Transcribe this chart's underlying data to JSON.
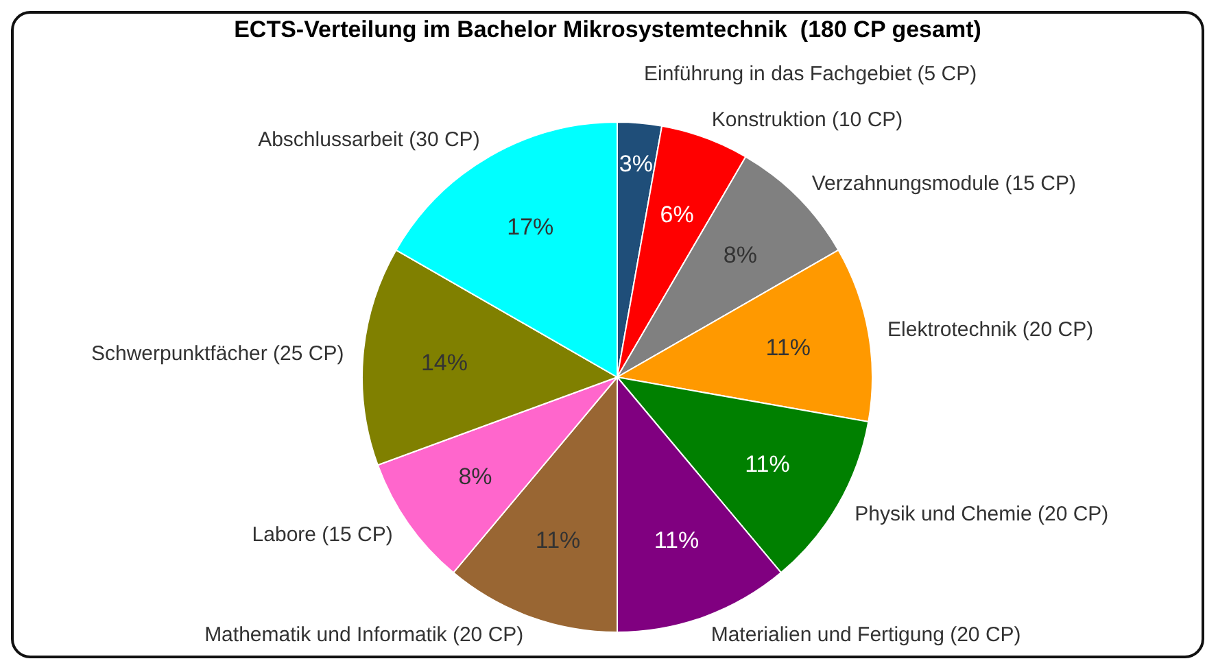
{
  "chart_data": {
    "type": "pie",
    "title": "ECTS-Verteilung im Bachelor Mikrosystemtechnik  (180 CP gesamt)",
    "categories": [
      "Einführung in das Fachgebiet (5 CP)",
      "Konstruktion (10 CP)",
      "Verzahnungsmodule (15 CP)",
      "Elektrotechnik (20 CP)",
      "Physik und Chemie (20 CP)",
      "Materialien und Fertigung (20 CP)",
      "Mathematik und Informatik (20 CP)",
      "Labore (15 CP)",
      "Schwerpunktfächer (25 CP)",
      "Abschlussarbeit (30 CP)"
    ],
    "values": [
      2.8,
      5.6,
      8.3,
      11.1,
      11.1,
      11.1,
      11.1,
      8.3,
      13.9,
      16.7
    ],
    "value_labels": [
      "3%",
      "6%",
      "8%",
      "11%",
      "11%",
      "11%",
      "11%",
      "8%",
      "14%",
      "17%"
    ],
    "colors": [
      "#1f4e79",
      "#ff0000",
      "#808080",
      "#ff9900",
      "#008000",
      "#800080",
      "#996633",
      "#ff66cc",
      "#808000",
      "#00ffff"
    ]
  }
}
